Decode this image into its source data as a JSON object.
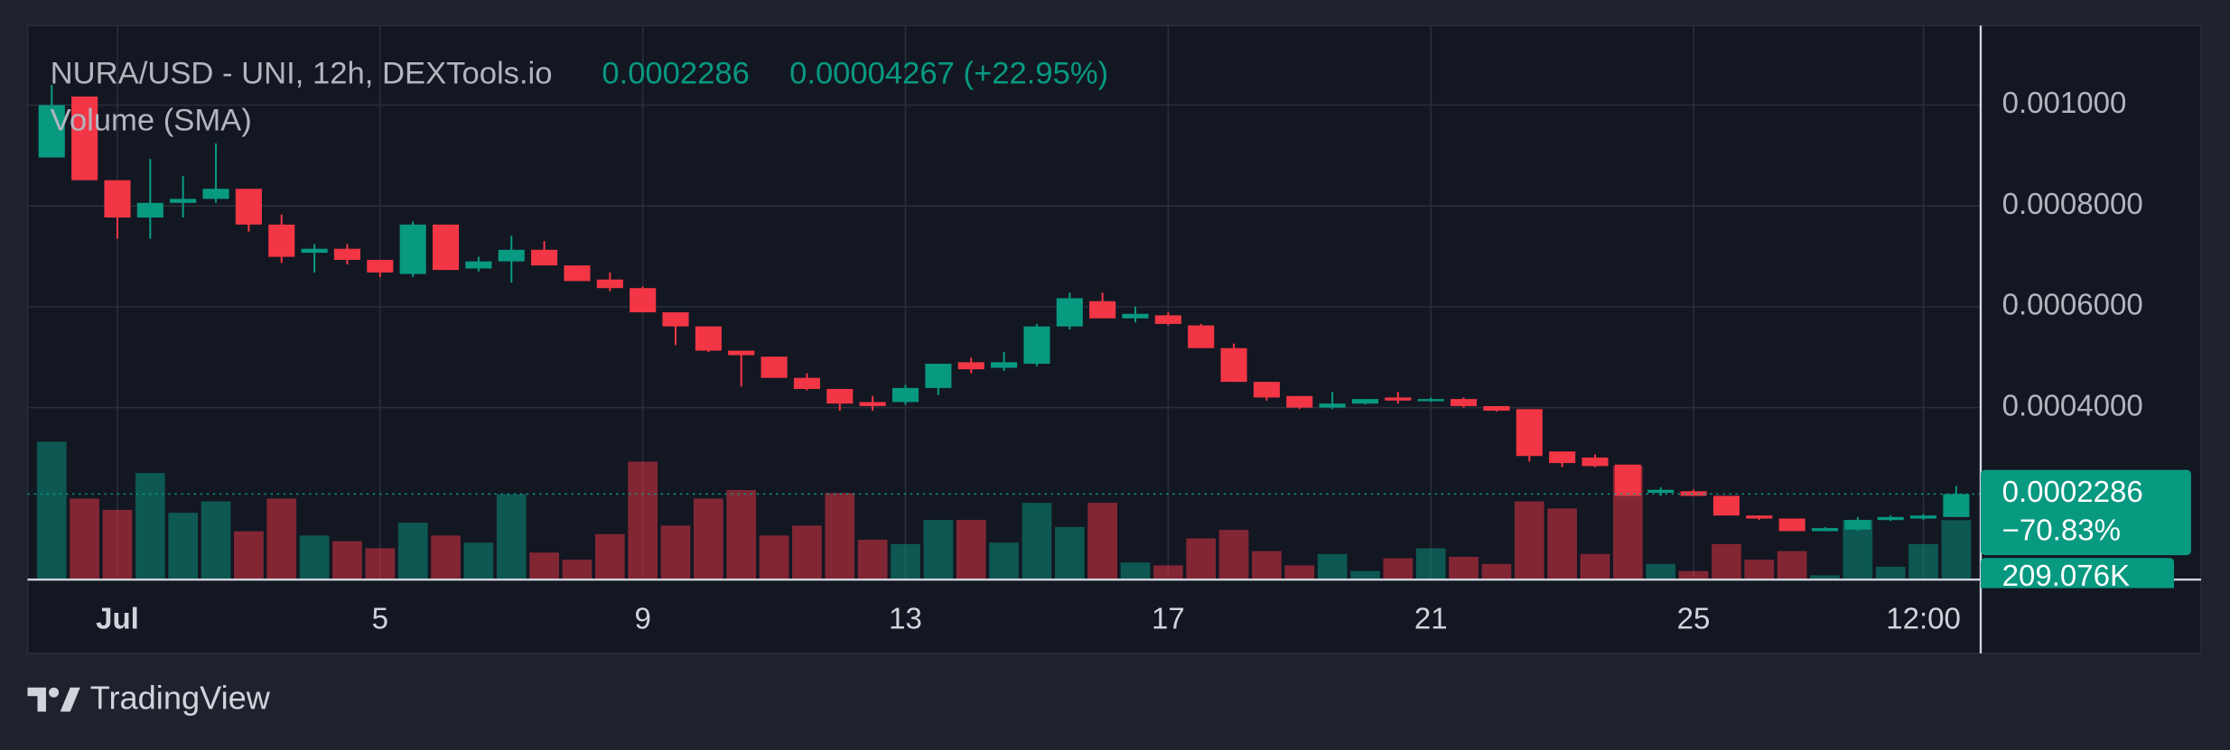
{
  "chart_data": {
    "type": "candlestick",
    "title": "NURA/USD - UNI, 12h, DEXTools.io",
    "last_price": 0.0002286,
    "change": 4.267e-05,
    "change_pct": {
      "value": 22.95,
      "label": "(+22.95%)"
    },
    "volume_label": "Volume (SMA)",
    "period_change_pct": {
      "value": -70.83,
      "label": "−70.83%"
    },
    "last_volume": {
      "value": 209076,
      "label": "209.076K"
    },
    "brand": "TradingView",
    "up_color": "#089981",
    "down_color": "#f23645",
    "grid": true,
    "categories": [
      null,
      null,
      "Jul",
      null,
      null,
      null,
      null,
      null,
      null,
      null,
      "5",
      null,
      null,
      null,
      null,
      null,
      null,
      null,
      "9",
      null,
      null,
      null,
      null,
      null,
      null,
      null,
      "13",
      null,
      null,
      null,
      null,
      null,
      null,
      null,
      "17",
      null,
      null,
      null,
      null,
      null,
      null,
      null,
      "21",
      null,
      null,
      null,
      null,
      null,
      null,
      null,
      "25",
      null,
      null,
      null,
      null,
      null,
      null,
      "12:00",
      null
    ],
    "open": [
      0.000896,
      0.001017,
      0.000851,
      0.000777,
      0.000806,
      0.000814,
      0.000834,
      0.000763,
      0.000707,
      0.000715,
      0.000693,
      0.000665,
      0.000763,
      0.000676,
      0.00069,
      0.000713,
      0.000682,
      0.000654,
      0.000637,
      0.000589,
      0.000561,
      0.000513,
      0.000501,
      0.000459,
      0.000437,
      0.000411,
      0.000411,
      0.000439,
      0.00049,
      0.000479,
      0.000487,
      0.000561,
      0.000611,
      0.000577,
      0.000583,
      0.000563,
      0.000518,
      0.000451,
      0.000423,
      0.0004,
      0.000408,
      0.00042,
      0.000414,
      0.000417,
      0.000403,
      0.000397,
      0.000313,
      0.000301,
      0.000287,
      0.000231,
      0.000234,
      0.000225,
      0.000186,
      0.00018,
      0.000155,
      0.000158,
      0.000177,
      0.00018,
      0.000183
    ],
    "high": [
      0.00104,
      0.001017,
      0.000851,
      0.000893,
      0.000859,
      0.000924,
      0.000834,
      0.000783,
      0.000724,
      0.000724,
      0.000693,
      0.000769,
      0.000763,
      0.000699,
      0.000741,
      0.00073,
      0.000682,
      0.000668,
      0.00064,
      0.000589,
      0.000561,
      0.000513,
      0.000501,
      0.000468,
      0.000437,
      0.000423,
      0.000445,
      0.000487,
      0.000499,
      0.00051,
      0.000566,
      0.000628,
      0.000628,
      0.0006,
      0.000589,
      0.000566,
      0.000527,
      0.000451,
      0.000423,
      0.000431,
      0.000417,
      0.000431,
      0.00042,
      0.00042,
      0.000403,
      0.000397,
      0.000313,
      0.000307,
      0.000287,
      0.000242,
      0.000237,
      0.000225,
      0.000186,
      0.00018,
      0.000163,
      0.000183,
      0.000186,
      0.000189,
      0.000245
    ],
    "low": [
      0.000896,
      0.000851,
      0.000735,
      0.000735,
      0.000777,
      0.000806,
      0.000749,
      0.000687,
      0.000668,
      0.000684,
      0.000659,
      0.000659,
      0.000673,
      0.00067,
      0.000648,
      0.000682,
      0.000651,
      0.000631,
      0.000589,
      0.000524,
      0.00051,
      0.000442,
      0.000459,
      0.000434,
      0.000394,
      0.000394,
      0.000406,
      0.000425,
      0.000468,
      0.000473,
      0.000482,
      0.000555,
      0.000577,
      0.000569,
      0.000563,
      0.000518,
      0.000451,
      0.000414,
      0.000397,
      0.000397,
      0.000406,
      0.000408,
      0.000411,
      0.0004,
      0.000392,
      0.000293,
      0.000282,
      0.000282,
      0.000225,
      0.000225,
      0.000225,
      0.000186,
      0.000177,
      0.000155,
      0.000155,
      0.000155,
      0.000175,
      0.000177,
      0.000183
    ],
    "close": [
      0.001,
      0.000851,
      0.000777,
      0.000806,
      0.000814,
      0.000834,
      0.000763,
      0.000699,
      0.000715,
      0.000693,
      0.000668,
      0.000763,
      0.000673,
      0.00069,
      0.000713,
      0.000682,
      0.000651,
      0.000637,
      0.000589,
      0.000561,
      0.000513,
      0.000504,
      0.000459,
      0.000437,
      0.000408,
      0.000403,
      0.000439,
      0.000487,
      0.000476,
      0.00049,
      0.000561,
      0.000617,
      0.000577,
      0.000586,
      0.000566,
      0.000518,
      0.000451,
      0.00042,
      0.0004,
      0.000408,
      0.000417,
      0.000414,
      0.000417,
      0.000403,
      0.000394,
      0.000304,
      0.00029,
      0.000284,
      0.000225,
      0.000237,
      0.000225,
      0.000186,
      0.00018,
      0.000155,
      0.000161,
      0.000177,
      0.000183,
      0.000186,
      0.0002286
    ],
    "volume": [
      485000,
      285000,
      245000,
      375000,
      235000,
      275000,
      170000,
      285000,
      155000,
      135000,
      110000,
      200000,
      155000,
      130000,
      300000,
      95000,
      70000,
      160000,
      415000,
      190000,
      285000,
      315000,
      155000,
      190000,
      305000,
      140000,
      125000,
      210000,
      210000,
      130000,
      270000,
      185000,
      270000,
      60000,
      50000,
      145000,
      175000,
      100000,
      50000,
      90000,
      30000,
      75000,
      110000,
      80000,
      55000,
      275000,
      250000,
      90000,
      400000,
      55000,
      30000,
      125000,
      70000,
      100000,
      15000,
      210000,
      45000,
      125000,
      209076
    ],
    "ylim": [
      5.9e-05,
      0.0011577
    ],
    "yticks": [
      {
        "value": 0.001,
        "label": "0.001000"
      },
      {
        "value": 0.0008,
        "label": "0.0008000"
      },
      {
        "value": 0.0006,
        "label": "0.0006000"
      },
      {
        "value": 0.0004,
        "label": "0.0004000"
      }
    ],
    "y2lim": [
      0,
      1950000
    ]
  }
}
